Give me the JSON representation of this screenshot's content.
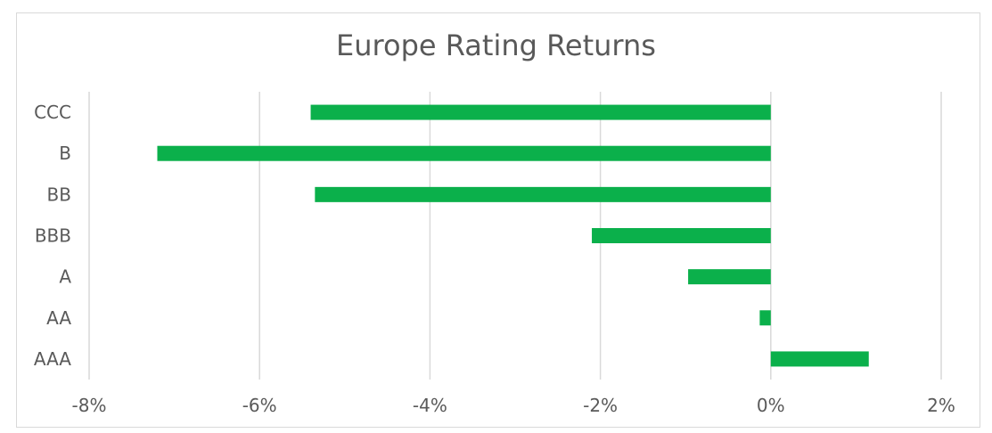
{
  "chart_data": {
    "type": "bar",
    "orientation": "horizontal",
    "title": "Europe Rating Returns",
    "categories": [
      "CCC",
      "B",
      "BB",
      "BBB",
      "A",
      "AA",
      "AAA"
    ],
    "values": [
      -5.4,
      -7.2,
      -5.35,
      -2.1,
      -0.97,
      -0.13,
      1.15
    ],
    "value_unit": "%",
    "xlim": [
      -8,
      2
    ],
    "xticks": [
      "-8%",
      "-6%",
      "-4%",
      "-2%",
      "0%",
      "2%"
    ],
    "xtick_values": [
      -8,
      -6,
      -4,
      -2,
      0,
      2
    ],
    "grid": true,
    "legend": "none",
    "bar_color": "#0bb04b",
    "grid_color": "#d9d9d9",
    "text_color": "#595959"
  }
}
